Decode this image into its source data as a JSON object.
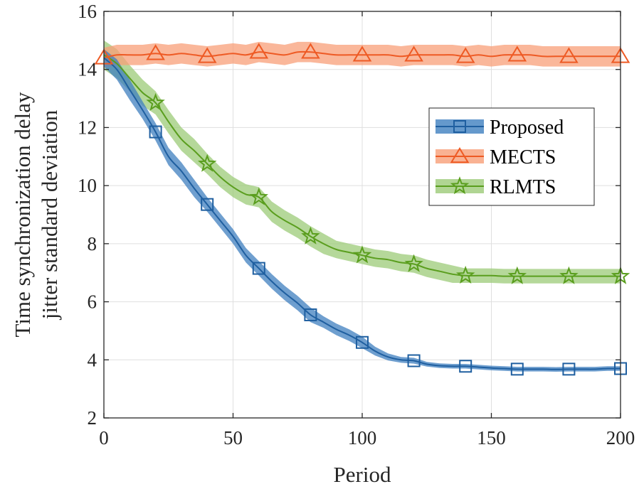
{
  "chart_data": {
    "type": "line",
    "title": "",
    "xlabel": "Period",
    "ylabel": [
      "Time synchronization delay",
      "jitter standard deviation"
    ],
    "xlim": [
      0,
      200
    ],
    "ylim": [
      2,
      16
    ],
    "xticks": [
      "0",
      "50",
      "100",
      "150",
      "200"
    ],
    "yticks": [
      "2",
      "4",
      "6",
      "8",
      "10",
      "12",
      "14",
      "16"
    ],
    "grid": true,
    "legend_position": "right-center",
    "series": [
      {
        "name": "Proposed",
        "color": "#1f5fa0",
        "fill": "#3f7fbf",
        "marker": "square",
        "x": [
          0,
          5,
          10,
          15,
          20,
          25,
          30,
          35,
          40,
          45,
          50,
          55,
          60,
          65,
          70,
          75,
          80,
          85,
          90,
          95,
          100,
          105,
          110,
          115,
          120,
          125,
          130,
          135,
          140,
          145,
          150,
          155,
          160,
          165,
          170,
          175,
          180,
          185,
          190,
          195,
          200
        ],
        "values": [
          14.4,
          14.0,
          13.3,
          12.6,
          11.85,
          11.0,
          10.5,
          9.9,
          9.35,
          8.8,
          8.25,
          7.6,
          7.15,
          6.7,
          6.3,
          5.95,
          5.55,
          5.3,
          5.05,
          4.85,
          4.6,
          4.3,
          4.1,
          4.0,
          3.97,
          3.85,
          3.8,
          3.78,
          3.78,
          3.75,
          3.72,
          3.7,
          3.68,
          3.68,
          3.68,
          3.67,
          3.68,
          3.68,
          3.68,
          3.7,
          3.7
        ],
        "band": [
          0.3,
          0.35,
          0.35,
          0.3,
          0.3,
          0.3,
          0.3,
          0.3,
          0.25,
          0.25,
          0.25,
          0.25,
          0.25,
          0.25,
          0.25,
          0.25,
          0.25,
          0.2,
          0.2,
          0.2,
          0.2,
          0.15,
          0.12,
          0.1,
          0.1,
          0.08,
          0.08,
          0.08,
          0.08,
          0.08,
          0.08,
          0.08,
          0.08,
          0.08,
          0.08,
          0.08,
          0.08,
          0.08,
          0.08,
          0.08,
          0.08
        ],
        "marker_x": [
          20,
          40,
          60,
          80,
          100,
          120,
          140,
          160,
          180,
          200
        ],
        "marker_values": [
          11.85,
          9.35,
          7.15,
          5.55,
          4.6,
          3.97,
          3.78,
          3.68,
          3.68,
          3.7
        ]
      },
      {
        "name": "MECTS",
        "color": "#ee5a24",
        "fill": "#f89f78",
        "marker": "triangle",
        "x": [
          0,
          5,
          10,
          15,
          20,
          25,
          30,
          35,
          40,
          45,
          50,
          55,
          60,
          65,
          70,
          75,
          80,
          85,
          90,
          95,
          100,
          105,
          110,
          115,
          120,
          125,
          130,
          135,
          140,
          145,
          150,
          155,
          160,
          165,
          170,
          175,
          180,
          185,
          190,
          195,
          200
        ],
        "values": [
          14.4,
          14.5,
          14.5,
          14.5,
          14.55,
          14.5,
          14.55,
          14.5,
          14.45,
          14.5,
          14.55,
          14.5,
          14.6,
          14.55,
          14.5,
          14.6,
          14.6,
          14.55,
          14.5,
          14.5,
          14.5,
          14.5,
          14.5,
          14.45,
          14.5,
          14.5,
          14.5,
          14.5,
          14.45,
          14.5,
          14.45,
          14.5,
          14.5,
          14.5,
          14.45,
          14.45,
          14.45,
          14.45,
          14.45,
          14.45,
          14.45
        ],
        "band": [
          0.35,
          0.35,
          0.35,
          0.35,
          0.35,
          0.35,
          0.35,
          0.35,
          0.35,
          0.35,
          0.35,
          0.35,
          0.35,
          0.35,
          0.35,
          0.35,
          0.35,
          0.35,
          0.35,
          0.35,
          0.35,
          0.35,
          0.35,
          0.35,
          0.35,
          0.35,
          0.35,
          0.35,
          0.35,
          0.35,
          0.35,
          0.35,
          0.35,
          0.35,
          0.35,
          0.35,
          0.35,
          0.35,
          0.35,
          0.35,
          0.35
        ],
        "marker_x": [
          0,
          20,
          40,
          60,
          80,
          100,
          120,
          140,
          160,
          180,
          200
        ],
        "marker_values": [
          14.4,
          14.55,
          14.45,
          14.6,
          14.6,
          14.5,
          14.5,
          14.45,
          14.5,
          14.45,
          14.45
        ]
      },
      {
        "name": "RLMTS",
        "color": "#5a9e1e",
        "fill": "#9ccb78",
        "marker": "star",
        "x": [
          0,
          5,
          10,
          15,
          20,
          25,
          30,
          35,
          40,
          45,
          50,
          55,
          60,
          65,
          70,
          75,
          80,
          85,
          90,
          95,
          100,
          105,
          110,
          115,
          120,
          125,
          130,
          135,
          140,
          145,
          150,
          155,
          160,
          165,
          170,
          175,
          180,
          185,
          190,
          195,
          200
        ],
        "values": [
          14.5,
          14.2,
          13.7,
          13.2,
          12.85,
          12.2,
          11.6,
          11.2,
          10.75,
          10.3,
          9.95,
          9.7,
          9.6,
          9.1,
          8.8,
          8.55,
          8.25,
          8.0,
          7.8,
          7.7,
          7.6,
          7.5,
          7.45,
          7.35,
          7.3,
          7.15,
          7.05,
          6.95,
          6.9,
          6.9,
          6.9,
          6.88,
          6.88,
          6.88,
          6.88,
          6.88,
          6.88,
          6.88,
          6.88,
          6.88,
          6.88
        ],
        "band": [
          0.5,
          0.5,
          0.45,
          0.45,
          0.4,
          0.4,
          0.4,
          0.4,
          0.35,
          0.35,
          0.35,
          0.35,
          0.35,
          0.35,
          0.35,
          0.35,
          0.35,
          0.35,
          0.3,
          0.3,
          0.3,
          0.3,
          0.3,
          0.3,
          0.3,
          0.3,
          0.3,
          0.3,
          0.25,
          0.25,
          0.25,
          0.25,
          0.25,
          0.25,
          0.25,
          0.25,
          0.25,
          0.25,
          0.25,
          0.25,
          0.25
        ],
        "marker_x": [
          20,
          40,
          60,
          80,
          100,
          120,
          140,
          160,
          180,
          200
        ],
        "marker_values": [
          12.85,
          10.75,
          9.6,
          8.25,
          7.6,
          7.3,
          6.9,
          6.88,
          6.88,
          6.88
        ]
      }
    ]
  }
}
